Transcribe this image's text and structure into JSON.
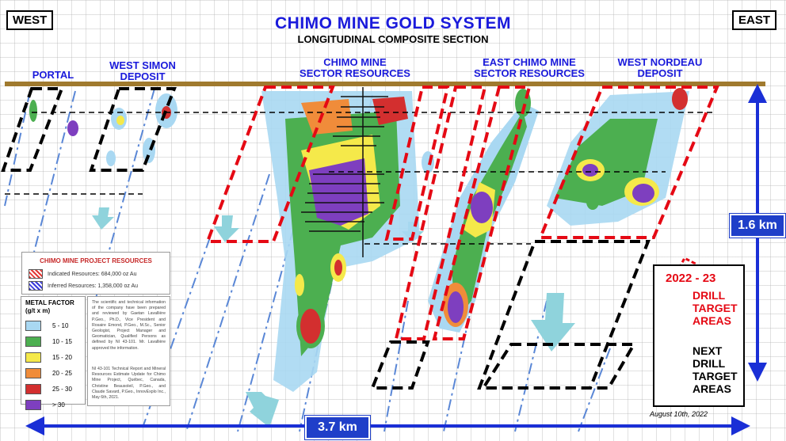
{
  "header": {
    "title": "CHIMO MINE GOLD SYSTEM",
    "subtitle": "LONGITUDINAL COMPOSITE SECTION",
    "west_label": "WEST",
    "east_label": "EAST"
  },
  "zones": {
    "portal": "PORTAL",
    "west_simon_1": "WEST SIMON",
    "west_simon_2": "DEPOSIT",
    "chimo_1": "CHIMO MINE",
    "chimo_2": "SECTOR RESOURCES",
    "east_chimo_1": "EAST CHIMO MINE",
    "east_chimo_2": "SECTOR RESOURCES",
    "west_nordeau_1": "WEST NORDEAU",
    "west_nordeau_2": "DEPOSIT"
  },
  "resources": {
    "title": "CHIMO MINE PROJECT RESOURCES",
    "indicated": "Indicated Resources:  684,000 oz Au",
    "inferred": "Inferred Resources:  1,358,000 oz Au",
    "indicated_color": "#e53935",
    "inferred_color": "#3a3adb"
  },
  "metal_factor": {
    "title_1": "METAL FACTOR",
    "title_2": "(g/t x m)",
    "items": [
      {
        "label": "5 - 10",
        "color": "#a9d8f2"
      },
      {
        "label": "10 - 15",
        "color": "#4caf50"
      },
      {
        "label": "15 - 20",
        "color": "#f5e94a"
      },
      {
        "label": "20 - 25",
        "color": "#f08c3a"
      },
      {
        "label": "25 - 30",
        "color": "#d32f2f"
      },
      {
        "label": "> 30",
        "color": "#7e3fbf"
      }
    ]
  },
  "notes": {
    "p1": "The scientific and technical information of the company have been prepared and reviewed by Gaetan Lavallière P.Geo., Ph.D., Vice President and Rosaire Emond, P.Geo., M.Sc., Senior Geologist, Project Manager and Geomatician, Qualified Persons as defined by NI 43-101. Mr. Lavallière approved the information.",
    "p2": "NI 43-101 Technical Report and Mineral Resources Estimate Update for Chimo Mine Project, Québec, Canada, Christine Beausoleil, P.Geo., and Claude Savard, P.Geo., InnovExplo Inc., May 6th, 2021."
  },
  "legend": {
    "red_title": "2022 - 23",
    "red_1": "DRILL",
    "red_2": "TARGET",
    "red_3": "AREAS",
    "black_1": "NEXT",
    "black_2": "DRILL",
    "black_3": "TARGET",
    "black_4": "AREAS"
  },
  "scale": {
    "vertical": "1.6 km",
    "horizontal": "3.7 km"
  },
  "date": "August 10th, 2022"
}
